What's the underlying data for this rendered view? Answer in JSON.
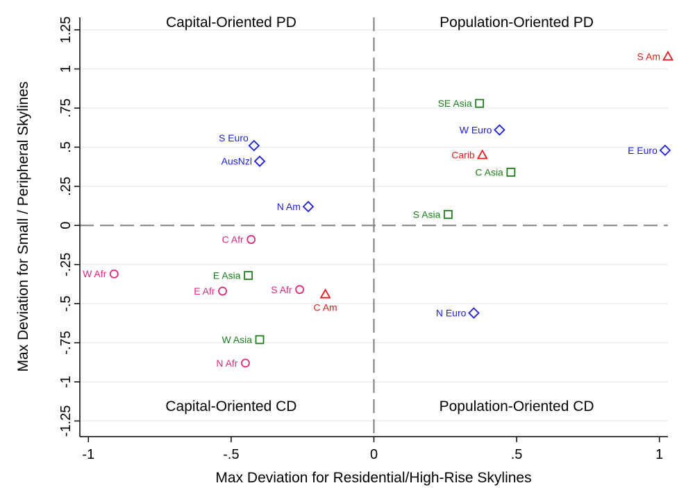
{
  "chart_data": {
    "type": "scatter",
    "xlabel": "Max Deviation for Residential/High-Rise Skylines",
    "ylabel": "Max Deviation for Small / Peripheral Skylines",
    "xlim": [
      -1.03,
      1.03
    ],
    "ylim": [
      -1.35,
      1.33
    ],
    "x_ticks": [
      {
        "value": -1,
        "label": "-1"
      },
      {
        "value": -0.5,
        "label": "-.5"
      },
      {
        "value": 0,
        "label": "0"
      },
      {
        "value": 0.5,
        "label": ".5"
      },
      {
        "value": 1,
        "label": "1"
      }
    ],
    "y_ticks": [
      {
        "value": -1.25,
        "label": "-1.25"
      },
      {
        "value": -1,
        "label": "-1"
      },
      {
        "value": -0.75,
        "label": "-.75"
      },
      {
        "value": -0.5,
        "label": "-.5"
      },
      {
        "value": -0.25,
        "label": "-.25"
      },
      {
        "value": 0,
        "label": "0"
      },
      {
        "value": 0.25,
        "label": ".25"
      },
      {
        "value": 0.5,
        "label": ".5"
      },
      {
        "value": 0.75,
        "label": ".75"
      },
      {
        "value": 1,
        "label": "1"
      },
      {
        "value": 1.25,
        "label": "1.25"
      }
    ],
    "grid": true,
    "reference_lines": {
      "x": 0,
      "y": 0,
      "style": "dashed",
      "color": "#7f7f7f"
    },
    "quadrant_labels": [
      {
        "text": "Capital-Oriented PD",
        "x": -0.5,
        "y": 1.3
      },
      {
        "text": "Population-Oriented PD",
        "x": 0.5,
        "y": 1.3
      },
      {
        "text": "Capital-Oriented CD",
        "x": -0.5,
        "y": -1.155
      },
      {
        "text": "Population-Oriented CD",
        "x": 0.5,
        "y": -1.155
      }
    ],
    "colors": {
      "diamond": "#1c1cd6",
      "square": "#1b7e1b",
      "triangle": "#e41a1a",
      "circle": "#e0287a",
      "grid": "#e8eef2",
      "axis": "#000000"
    },
    "points": [
      {
        "label": "S Am",
        "x": 1.03,
        "y": 1.08,
        "marker": "triangle",
        "label_pos": "left"
      },
      {
        "label": "SE Asia",
        "x": 0.37,
        "y": 0.78,
        "marker": "square",
        "label_pos": "left"
      },
      {
        "label": "W Euro",
        "x": 0.44,
        "y": 0.61,
        "marker": "diamond",
        "label_pos": "left"
      },
      {
        "label": "E Euro",
        "x": 1.02,
        "y": 0.48,
        "marker": "diamond",
        "label_pos": "left"
      },
      {
        "label": "Carib",
        "x": 0.38,
        "y": 0.45,
        "marker": "triangle",
        "label_pos": "left"
      },
      {
        "label": "C Asia",
        "x": 0.48,
        "y": 0.34,
        "marker": "square",
        "label_pos": "left"
      },
      {
        "label": "S Asia",
        "x": 0.26,
        "y": 0.07,
        "marker": "square",
        "label_pos": "left"
      },
      {
        "label": "N Euro",
        "x": 0.35,
        "y": -0.56,
        "marker": "diamond",
        "label_pos": "left"
      },
      {
        "label": "S Euro",
        "x": -0.42,
        "y": 0.51,
        "marker": "diamond",
        "label_pos": "upper-left"
      },
      {
        "label": "AusNzl",
        "x": -0.4,
        "y": 0.41,
        "marker": "diamond",
        "label_pos": "left"
      },
      {
        "label": "N Am",
        "x": -0.23,
        "y": 0.12,
        "marker": "diamond",
        "label_pos": "left"
      },
      {
        "label": "C Afr",
        "x": -0.43,
        "y": -0.09,
        "marker": "circle",
        "label_pos": "left"
      },
      {
        "label": "W Afr",
        "x": -0.91,
        "y": -0.31,
        "marker": "circle",
        "label_pos": "left"
      },
      {
        "label": "E Asia",
        "x": -0.44,
        "y": -0.32,
        "marker": "square",
        "label_pos": "left"
      },
      {
        "label": "E Afr",
        "x": -0.53,
        "y": -0.42,
        "marker": "circle",
        "label_pos": "left"
      },
      {
        "label": "S Afr",
        "x": -0.26,
        "y": -0.41,
        "marker": "circle",
        "label_pos": "left"
      },
      {
        "label": "C Am",
        "x": -0.17,
        "y": -0.44,
        "marker": "triangle",
        "label_pos": "below"
      },
      {
        "label": "W Asia",
        "x": -0.4,
        "y": -0.73,
        "marker": "square",
        "label_pos": "left"
      },
      {
        "label": "N Afr",
        "x": -0.45,
        "y": -0.88,
        "marker": "circle",
        "label_pos": "left"
      }
    ]
  }
}
